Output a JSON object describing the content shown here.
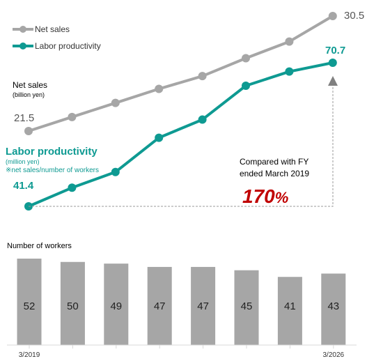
{
  "chart_data": [
    {
      "type": "line",
      "series": [
        {
          "name": "Net sales",
          "values": [
            21.5,
            22.6,
            23.7,
            24.8,
            25.8,
            27.2,
            28.5,
            30.5
          ],
          "color": "#a6a6a6",
          "label_first": "21.5",
          "label_last": "30.5"
        },
        {
          "name": "Labor productivity",
          "values": [
            41.4,
            45.2,
            48.4,
            55.4,
            59.1,
            66.0,
            68.9,
            70.7
          ],
          "color": "#0e9a92",
          "label_first": "41.4",
          "label_last": "70.7"
        }
      ],
      "legend": {
        "position": "top-left",
        "items": [
          "Net sales",
          "Labor productivity"
        ]
      },
      "net_sales_axis": {
        "title": "Net sales",
        "unit": "(billion yen)"
      },
      "labor_productivity_axis": {
        "title": "Labor productivity",
        "unit": "(million yen)",
        "note": "※net sales/number of workers"
      },
      "comparison": {
        "line1": "Compared with FY",
        "line2": "ended March 2019",
        "value": "170",
        "suffix": "%"
      }
    },
    {
      "type": "bar",
      "title": "Number of workers",
      "categories": [
        "3/2019",
        "",
        "",
        "",
        "",
        "",
        "",
        "3/2026"
      ],
      "values": [
        52,
        50,
        49,
        47,
        47,
        45,
        41,
        43
      ],
      "color": "#a6a6a6",
      "grid": false
    }
  ]
}
